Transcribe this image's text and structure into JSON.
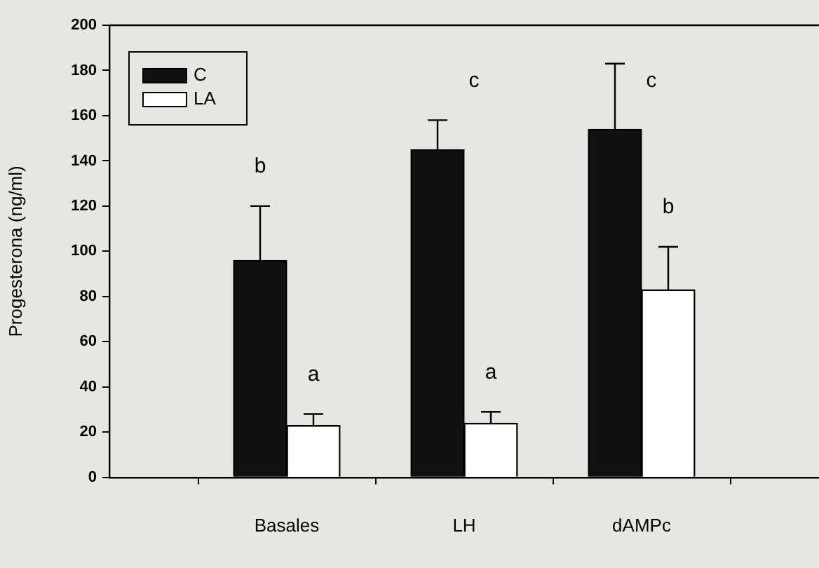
{
  "chart_data": {
    "type": "bar",
    "ylabel": "Progesterona (ng/ml)",
    "categories": [
      "Basales",
      "LH",
      "dAMPc"
    ],
    "series": [
      {
        "name": "C",
        "color": "#111111",
        "values": [
          96,
          145,
          154
        ],
        "errors": [
          24,
          13,
          29
        ]
      },
      {
        "name": "LA",
        "color": "#ffffff",
        "values": [
          23,
          24,
          83
        ],
        "errors": [
          5,
          5,
          19
        ]
      }
    ],
    "ylim": [
      0,
      200
    ],
    "yticks": [
      0,
      20,
      40,
      60,
      80,
      100,
      120,
      140,
      160,
      180,
      200
    ],
    "grid": false,
    "legend": "top left",
    "annotations": [
      "b",
      "a",
      "c",
      "a",
      "c",
      "b"
    ]
  }
}
